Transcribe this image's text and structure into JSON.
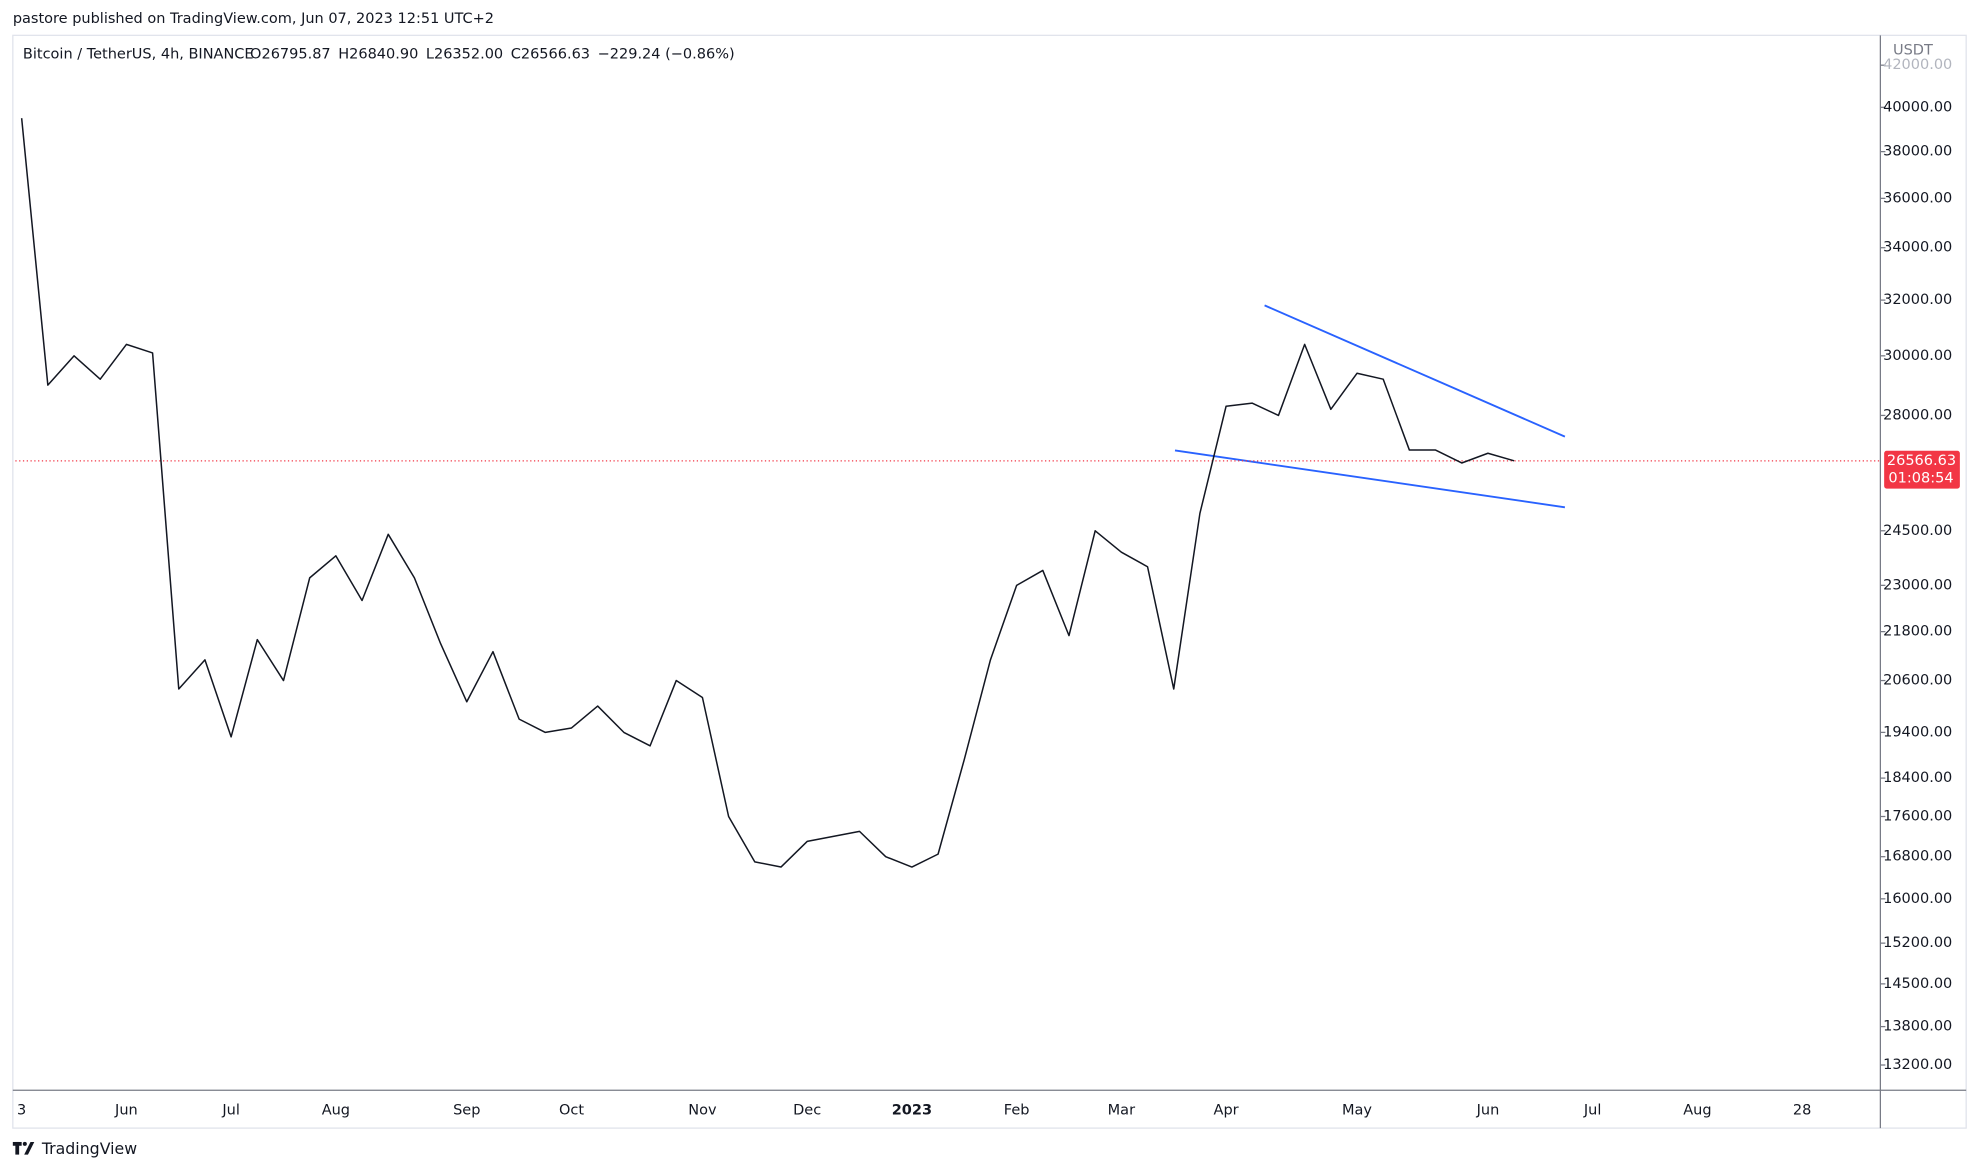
{
  "header": {
    "published": "pastore published on TradingView.com, Jun 07, 2023 12:51 UTC+2"
  },
  "chart_data": {
    "type": "line",
    "title": "Bitcoin / TetherUS, 4h, BINANCE",
    "ohlc": [
      "O26795.87",
      "H26840.90",
      "L26352.00",
      "C26566.63",
      "−229.24 (−0.86%)"
    ],
    "y_axis_label": "USDT",
    "log_scale": true,
    "color": "#131722",
    "categories": [
      "3",
      null,
      null,
      null,
      "Jun",
      null,
      null,
      null,
      "Jul",
      null,
      null,
      null,
      "Aug",
      null,
      null,
      null,
      null,
      "Sep",
      null,
      null,
      null,
      "Oct",
      null,
      null,
      null,
      null,
      "Nov",
      null,
      null,
      null,
      "Dec",
      null,
      null,
      null,
      "2023",
      null,
      null,
      null,
      "Feb",
      null,
      null,
      null,
      "Mar",
      null,
      null,
      null,
      "Apr",
      null,
      null,
      null,
      null,
      "May",
      null,
      null,
      null,
      null,
      "Jun",
      null,
      null,
      null,
      "Jul",
      null,
      null,
      null,
      "Aug",
      null,
      null,
      null,
      "28",
      null
    ],
    "values": [
      39500,
      29000,
      30000,
      29200,
      30400,
      30100,
      20400,
      21100,
      19300,
      21600,
      20600,
      23200,
      23800,
      22600,
      24400,
      23200,
      21500,
      20100,
      21300,
      19700,
      19400,
      19500,
      20000,
      19400,
      19100,
      20600,
      20200,
      17600,
      16700,
      16600,
      17100,
      17200,
      17300,
      16800,
      16600,
      16850,
      18800,
      21100,
      23000,
      23400,
      21700,
      24500,
      23900,
      23500,
      20400,
      25000,
      28300,
      28400,
      28000,
      30400,
      28200,
      29400,
      29200,
      26900,
      26900,
      26500,
      26800,
      26566.63,
      null,
      null,
      null,
      null,
      null,
      null,
      null,
      null,
      null,
      null,
      null,
      null
    ],
    "ylim": [
      12820,
      43350
    ],
    "yticks": [
      {
        "value": 42000,
        "label": "42000.00"
      },
      {
        "value": 40000,
        "label": "40000.00"
      },
      {
        "value": 38000,
        "label": "38000.00"
      },
      {
        "value": 36000,
        "label": "36000.00"
      },
      {
        "value": 34000,
        "label": "34000.00"
      },
      {
        "value": 32000,
        "label": "32000.00"
      },
      {
        "value": 30000,
        "label": "30000.00"
      },
      {
        "value": 28000,
        "label": "28000.00"
      },
      {
        "value": 24500,
        "label": "24500.00"
      },
      {
        "value": 23000,
        "label": "23000.00"
      },
      {
        "value": 21800,
        "label": "21800.00"
      },
      {
        "value": 20600,
        "label": "20600.00"
      },
      {
        "value": 19400,
        "label": "19400.00"
      },
      {
        "value": 18400,
        "label": "18400.00"
      },
      {
        "value": 17600,
        "label": "17600.00"
      },
      {
        "value": 16800,
        "label": "16800.00"
      },
      {
        "value": 16000,
        "label": "16000.00"
      },
      {
        "value": 15200,
        "label": "15200.00"
      },
      {
        "value": 14500,
        "label": "14500.00"
      },
      {
        "value": 13800,
        "label": "13800.00"
      },
      {
        "value": 13200,
        "label": "13200.00"
      }
    ],
    "last_price": {
      "value": 26566.63,
      "label": "26566.63"
    },
    "countdown": "01:08:54"
  },
  "footer": {
    "brand": "TradingView"
  }
}
